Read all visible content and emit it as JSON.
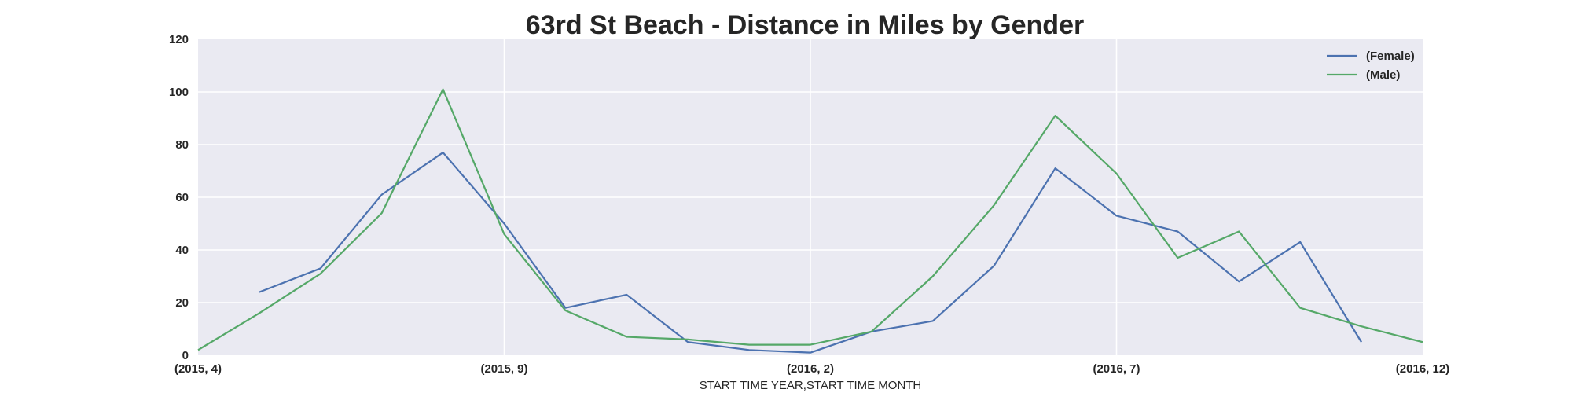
{
  "chart_data": {
    "type": "line",
    "title": "63rd St Beach - Distance in Miles by Gender",
    "xlabel": "START TIME YEAR,START TIME MONTH",
    "ylabel": "",
    "x": [
      "(2015, 4)",
      "(2015, 5)",
      "(2015, 6)",
      "(2015, 7)",
      "(2015, 8)",
      "(2015, 9)",
      "(2015, 10)",
      "(2015, 11)",
      "(2015, 12)",
      "(2016, 1)",
      "(2016, 2)",
      "(2016, 3)",
      "(2016, 4)",
      "(2016, 5)",
      "(2016, 6)",
      "(2016, 7)",
      "(2016, 8)",
      "(2016, 9)",
      "(2016, 10)",
      "(2016, 11)",
      "(2016, 12)"
    ],
    "x_tick_labels": [
      "(2015, 4)",
      "(2015, 9)",
      "(2016, 2)",
      "(2016, 7)",
      "(2016, 12)"
    ],
    "y_ticks": [
      "0",
      "20",
      "40",
      "60",
      "80",
      "100",
      "120"
    ],
    "ylim": [
      0,
      120
    ],
    "grid": true,
    "legend_position": "top-right",
    "series": [
      {
        "name": "(Female)",
        "color": "#4c72b0",
        "values": [
          null,
          24,
          33,
          61,
          77,
          50,
          18,
          23,
          5,
          2,
          1,
          9,
          13,
          34,
          71,
          53,
          47,
          28,
          43,
          5,
          null
        ]
      },
      {
        "name": "(Male)",
        "color": "#55a868",
        "values": [
          2,
          16,
          31,
          54,
          101,
          46,
          17,
          7,
          6,
          4,
          4,
          9,
          30,
          57,
          91,
          69,
          37,
          47,
          18,
          11,
          5
        ]
      }
    ]
  }
}
